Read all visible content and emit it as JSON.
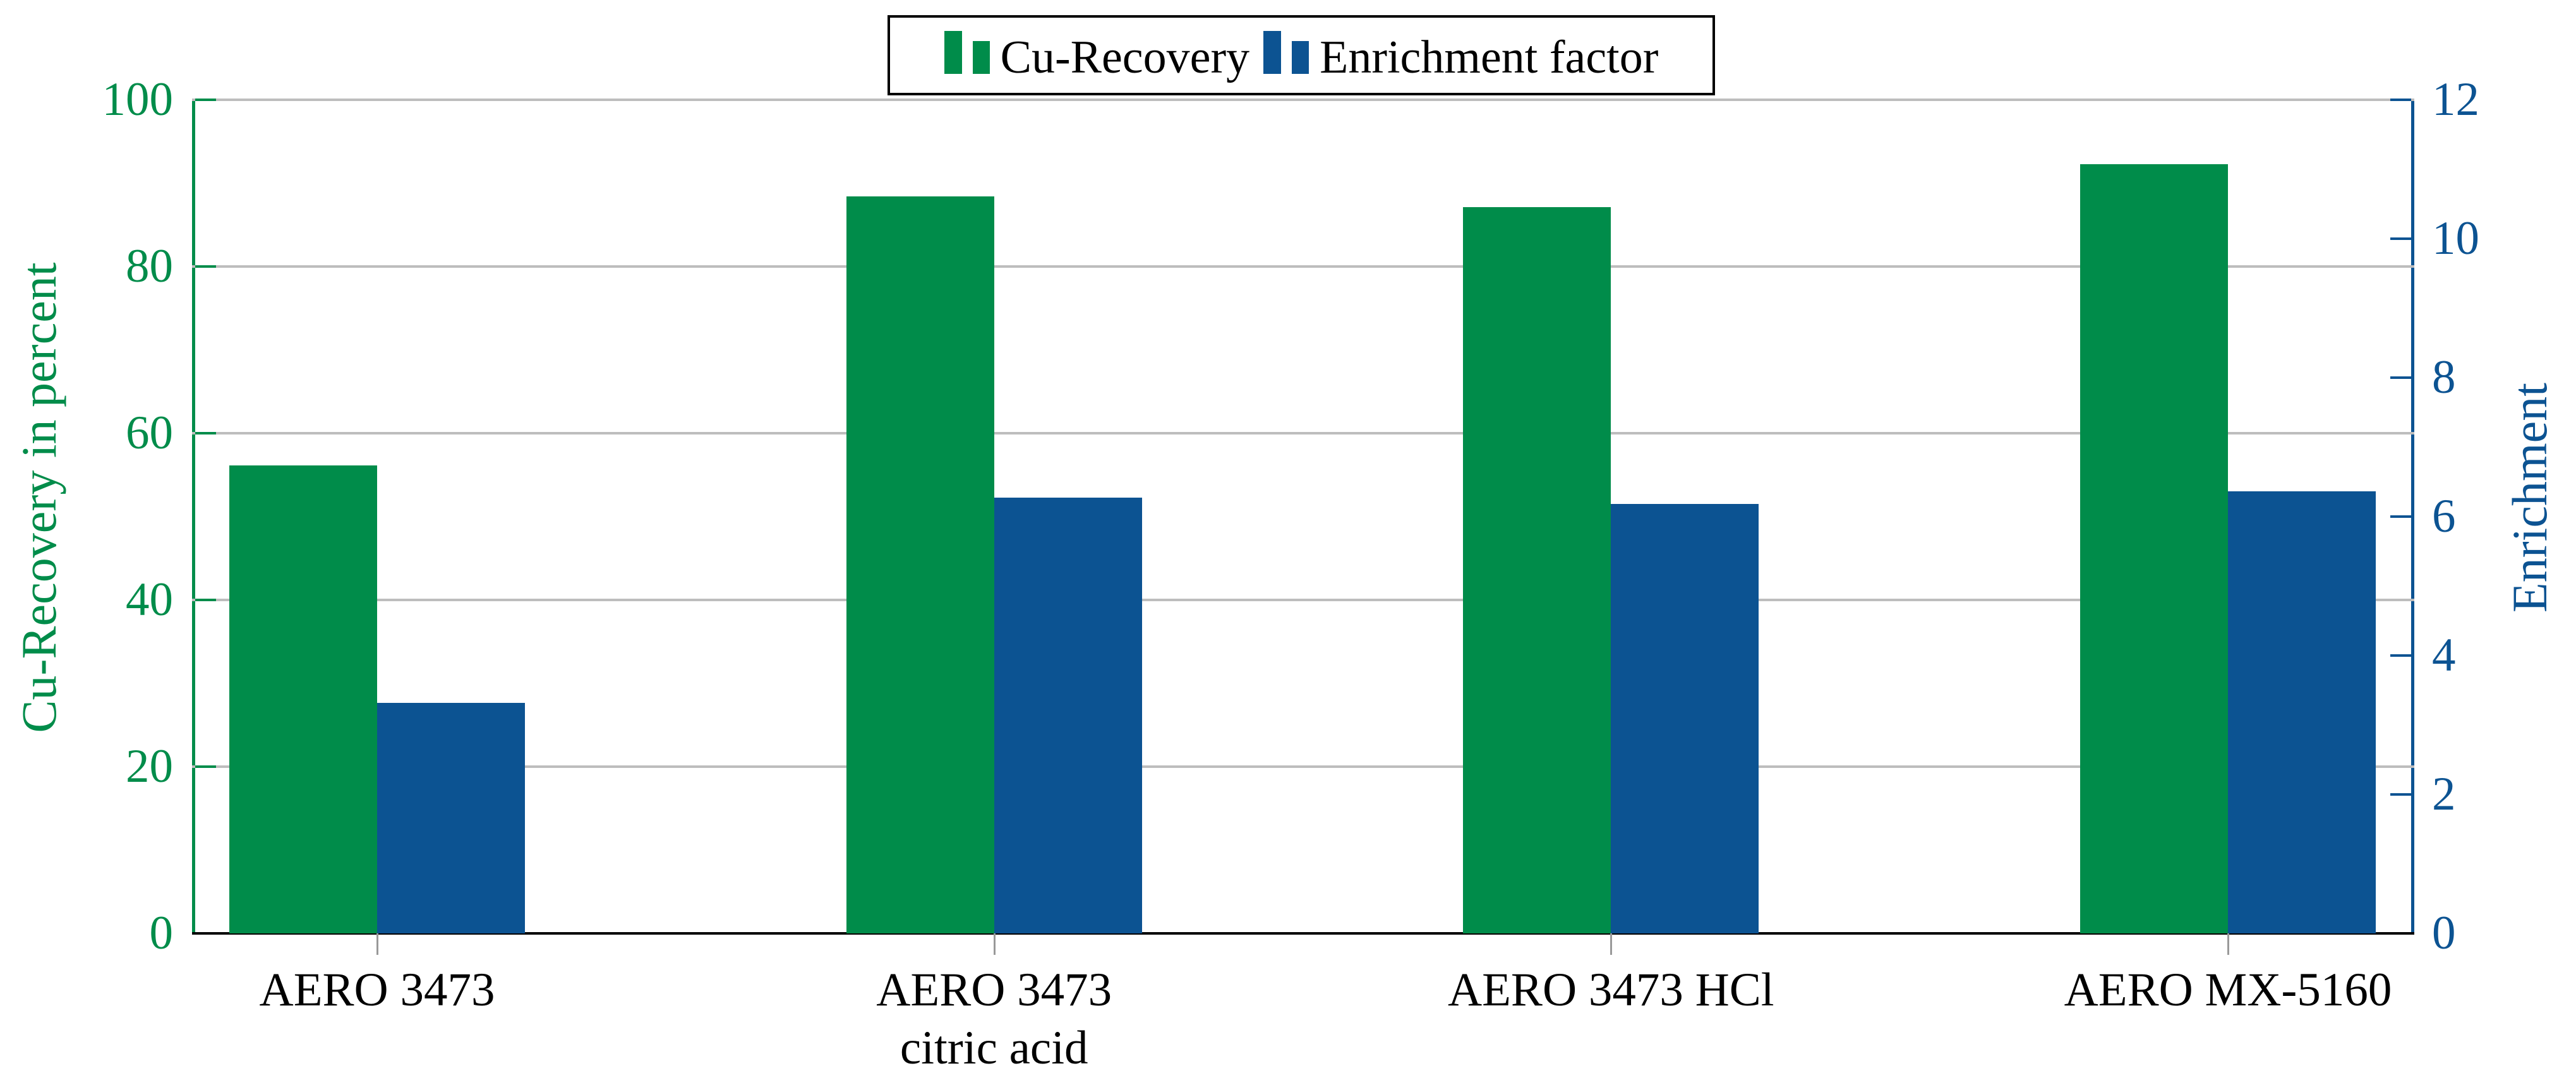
{
  "chart_data": {
    "type": "bar",
    "title": "",
    "categories": [
      {
        "lines": [
          "AERO 3473"
        ]
      },
      {
        "lines": [
          "AERO 3473",
          "citric acid"
        ]
      },
      {
        "lines": [
          "AERO 3473 HCl"
        ]
      },
      {
        "lines": [
          "AERO MX-5160"
        ]
      }
    ],
    "series": [
      {
        "name": "Cu-Recovery",
        "axis": "left",
        "color": "#008C4A",
        "values": [
          56.1,
          88.4,
          87.1,
          92.3
        ]
      },
      {
        "name": "Enrichment factor",
        "axis": "right",
        "color": "#0C5392",
        "values": [
          3.32,
          6.27,
          6.18,
          6.36
        ]
      }
    ],
    "left_axis": {
      "label": "Cu-Recovery in percent",
      "min": 0,
      "max": 100,
      "ticks": [
        0,
        20,
        40,
        60,
        80,
        100
      ],
      "color": "#008C4A"
    },
    "right_axis": {
      "label": "Enrichment",
      "min": 0,
      "max": 12,
      "ticks": [
        0,
        2,
        4,
        6,
        8,
        10,
        12
      ],
      "color": "#0C5392"
    },
    "grid": {
      "show": true,
      "color": "#BDBDBD",
      "at_left_values": [
        20,
        40,
        60,
        80,
        100
      ]
    },
    "x_axis": {
      "line_color": "#000000",
      "tick_color": "#999999"
    },
    "legend": {
      "position": "top-center",
      "border_color": "#000000",
      "background": "#FFFFFF"
    }
  }
}
